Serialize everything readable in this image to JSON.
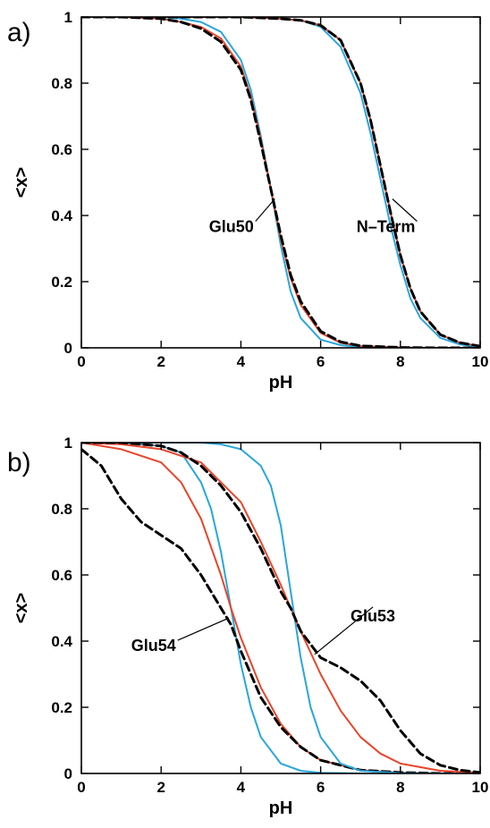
{
  "chart_data": [
    {
      "panel_label": "a)",
      "type": "line",
      "xlabel": "pH",
      "ylabel": "<x>",
      "xlim": [
        0,
        10
      ],
      "ylim": [
        0,
        1
      ],
      "xticks": [
        "0",
        "2",
        "4",
        "6",
        "8",
        "10"
      ],
      "yticks": [
        "0",
        "0.2",
        "0.4",
        "0.6",
        "0.8",
        "1"
      ],
      "grid": false,
      "series": [
        {
          "color": "#2aa6dc",
          "style": "solid",
          "x": [
            0,
            1,
            2,
            2.5,
            3,
            3.5,
            4,
            4.25,
            4.5,
            4.75,
            5,
            5.25,
            5.5,
            6,
            6.5,
            7,
            8,
            9,
            10
          ],
          "y": [
            1,
            1,
            1,
            0.995,
            0.985,
            0.955,
            0.87,
            0.78,
            0.64,
            0.48,
            0.31,
            0.17,
            0.09,
            0.025,
            0.008,
            0.002,
            0,
            0,
            0
          ]
        },
        {
          "color": "#e8452a",
          "style": "solid",
          "x": [
            0,
            1,
            2,
            2.5,
            3,
            3.5,
            4,
            4.25,
            4.5,
            4.75,
            5,
            5.25,
            5.5,
            6,
            6.5,
            7,
            8,
            9,
            10
          ],
          "y": [
            1,
            1,
            0.995,
            0.985,
            0.97,
            0.935,
            0.85,
            0.76,
            0.63,
            0.48,
            0.33,
            0.21,
            0.13,
            0.045,
            0.015,
            0.005,
            0.001,
            0,
            0
          ]
        },
        {
          "color": "#000000",
          "style": "dashed",
          "x": [
            0,
            1,
            2,
            2.5,
            3,
            3.5,
            4,
            4.25,
            4.5,
            4.75,
            5,
            5.25,
            5.5,
            6,
            6.5,
            7,
            8,
            9,
            10
          ],
          "y": [
            1,
            1,
            0.995,
            0.985,
            0.965,
            0.925,
            0.84,
            0.75,
            0.62,
            0.48,
            0.34,
            0.22,
            0.14,
            0.05,
            0.018,
            0.006,
            0.001,
            0,
            0
          ]
        },
        {
          "color": "#2aa6dc",
          "style": "solid",
          "x": [
            0,
            2,
            4,
            5,
            5.5,
            6,
            6.5,
            7,
            7.25,
            7.5,
            7.75,
            8,
            8.25,
            8.5,
            9,
            9.5,
            10
          ],
          "y": [
            1,
            1,
            1,
            0.995,
            0.99,
            0.97,
            0.91,
            0.77,
            0.65,
            0.51,
            0.37,
            0.25,
            0.15,
            0.09,
            0.03,
            0.01,
            0.003
          ]
        },
        {
          "color": "#e8452a",
          "style": "solid",
          "x": [
            0,
            2,
            4,
            5,
            5.5,
            6,
            6.5,
            7,
            7.25,
            7.5,
            7.75,
            8,
            8.25,
            8.5,
            9,
            9.5,
            10
          ],
          "y": [
            1,
            1,
            1,
            0.995,
            0.99,
            0.975,
            0.93,
            0.8,
            0.69,
            0.55,
            0.41,
            0.28,
            0.18,
            0.11,
            0.04,
            0.015,
            0.005
          ]
        },
        {
          "color": "#000000",
          "style": "dashed",
          "x": [
            0,
            2,
            4,
            5,
            5.5,
            6,
            6.5,
            7,
            7.25,
            7.5,
            7.75,
            8,
            8.25,
            8.5,
            9,
            9.5,
            10
          ],
          "y": [
            1,
            1,
            1,
            0.995,
            0.99,
            0.975,
            0.93,
            0.8,
            0.69,
            0.55,
            0.41,
            0.28,
            0.18,
            0.11,
            0.04,
            0.015,
            0.005
          ]
        }
      ],
      "annotations": [
        {
          "text": "Glu50",
          "text_x": 3.2,
          "text_y": 0.35,
          "point_x": 4.85,
          "point_y": 0.45
        },
        {
          "text": "N–Term",
          "text_x": 6.9,
          "text_y": 0.35,
          "point_x": 7.8,
          "point_y": 0.45
        }
      ]
    },
    {
      "panel_label": "b)",
      "type": "line",
      "xlabel": "pH",
      "ylabel": "<x>",
      "xlim": [
        0,
        10
      ],
      "ylim": [
        0,
        1
      ],
      "xticks": [
        "0",
        "2",
        "4",
        "6",
        "8",
        "10"
      ],
      "yticks": [
        "0",
        "0.2",
        "0.4",
        "0.6",
        "0.8",
        "1"
      ],
      "grid": false,
      "series": [
        {
          "color": "#2aa6dc",
          "style": "solid",
          "x": [
            0,
            1,
            2,
            2.5,
            3,
            3.25,
            3.5,
            3.75,
            4,
            4.25,
            4.5,
            5,
            5.5,
            6,
            7
          ],
          "y": [
            1,
            1,
            0.99,
            0.97,
            0.88,
            0.8,
            0.67,
            0.5,
            0.33,
            0.2,
            0.11,
            0.03,
            0.008,
            0.002,
            0
          ]
        },
        {
          "color": "#e8452a",
          "style": "solid",
          "x": [
            0,
            1,
            2,
            2.5,
            3,
            3.5,
            3.75,
            4,
            4.5,
            5,
            5.5,
            6,
            7,
            8,
            9,
            10
          ],
          "y": [
            1,
            0.98,
            0.94,
            0.88,
            0.77,
            0.6,
            0.5,
            0.41,
            0.26,
            0.15,
            0.08,
            0.04,
            0.01,
            0.002,
            0,
            0
          ]
        },
        {
          "color": "#000000",
          "style": "dashed",
          "x": [
            0,
            0.5,
            1,
            1.5,
            2,
            2.5,
            3,
            3.5,
            3.75,
            4,
            4.5,
            5,
            5.5,
            6,
            7,
            8,
            9,
            10
          ],
          "y": [
            0.98,
            0.93,
            0.83,
            0.76,
            0.72,
            0.68,
            0.6,
            0.5,
            0.45,
            0.37,
            0.23,
            0.14,
            0.08,
            0.04,
            0.01,
            0.003,
            0,
            0
          ]
        },
        {
          "color": "#2aa6dc",
          "style": "solid",
          "x": [
            0,
            2,
            3,
            3.5,
            4,
            4.5,
            4.75,
            5,
            5.25,
            5.5,
            5.75,
            6,
            6.5,
            7,
            8,
            9,
            10
          ],
          "y": [
            1,
            1,
            1,
            0.995,
            0.98,
            0.93,
            0.87,
            0.75,
            0.55,
            0.35,
            0.2,
            0.11,
            0.03,
            0.008,
            0.001,
            0,
            0
          ]
        },
        {
          "color": "#e8452a",
          "style": "solid",
          "x": [
            0,
            1,
            2,
            3,
            4,
            4.5,
            5,
            5.25,
            5.5,
            6,
            6.5,
            7,
            7.5,
            8,
            9,
            10
          ],
          "y": [
            1,
            0.995,
            0.98,
            0.94,
            0.82,
            0.7,
            0.57,
            0.5,
            0.43,
            0.3,
            0.19,
            0.11,
            0.06,
            0.03,
            0.008,
            0.002
          ]
        },
        {
          "color": "#000000",
          "style": "dashed",
          "x": [
            0,
            1,
            2,
            2.5,
            3,
            3.5,
            4,
            4.5,
            5,
            5.25,
            5.5,
            6,
            6.5,
            7,
            7.5,
            8,
            8.5,
            9,
            9.5,
            10
          ],
          "y": [
            1,
            1,
            0.99,
            0.97,
            0.93,
            0.87,
            0.79,
            0.68,
            0.55,
            0.5,
            0.43,
            0.35,
            0.32,
            0.28,
            0.22,
            0.13,
            0.06,
            0.025,
            0.01,
            0.003
          ]
        }
      ],
      "annotations": [
        {
          "text": "Glu54",
          "text_x": 1.25,
          "text_y": 0.37,
          "point_x": 3.7,
          "point_y": 0.47
        },
        {
          "text": "Glu53",
          "text_x": 6.75,
          "text_y": 0.46,
          "point_x": 5.85,
          "point_y": 0.36
        }
      ]
    }
  ]
}
